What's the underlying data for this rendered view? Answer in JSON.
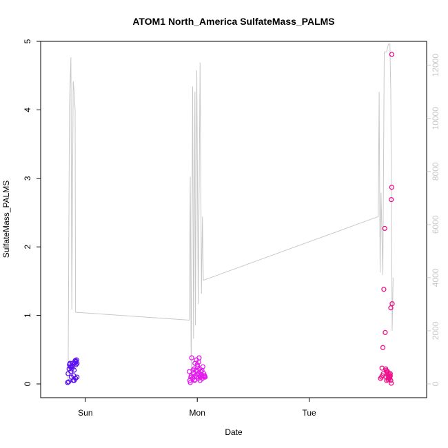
{
  "chart_data": {
    "type": "scatter",
    "title": "ATOM1 North_America SulfateMass_PALMS",
    "xlabel": "Date",
    "ylabel": "SulfateMass_PALMS",
    "x_tick_labels": [
      "Sun",
      "Mon",
      "Tue"
    ],
    "x_tick_values": [
      24,
      48,
      72
    ],
    "xlim": [
      15.6,
      96
    ],
    "ylim": [
      0,
      5
    ],
    "y_ticks": [
      0,
      1,
      2,
      3,
      4,
      5
    ],
    "y2lim": [
      0,
      12900
    ],
    "y2_ticks": [
      0,
      2000,
      4000,
      6000,
      8000,
      10000,
      12000
    ],
    "grid": false,
    "colors": {
      "flight1": "#5a10f0",
      "flight2": "#e41aef",
      "flight3": "#f0108a",
      "altitude": "#c8c8c8",
      "frame": "#000000"
    },
    "series": [
      {
        "values": [
          [
            20.2,
            0.02
          ],
          [
            20.4,
            0.03
          ],
          [
            20.3,
            0.15
          ],
          [
            20.5,
            0.22
          ],
          [
            20.6,
            0.28
          ],
          [
            20.7,
            0.3
          ],
          [
            20.8,
            0.25
          ],
          [
            20.9,
            0.18
          ],
          [
            21.0,
            0.1
          ],
          [
            21.1,
            0.22
          ],
          [
            21.2,
            0.3
          ],
          [
            21.3,
            0.26
          ],
          [
            21.4,
            0.05
          ],
          [
            21.5,
            0.12
          ],
          [
            21.6,
            0.2
          ],
          [
            21.7,
            0.3
          ],
          [
            21.8,
            0.34
          ],
          [
            21.9,
            0.32
          ],
          [
            22.0,
            0.28
          ],
          [
            22.1,
            0.35
          ],
          [
            22.2,
            0.3
          ],
          [
            21.9,
            0.08
          ],
          [
            22.2,
            0.1
          ],
          [
            21.6,
            0.05
          ],
          [
            21.0,
            0.25
          ],
          [
            22.0,
            0.33
          ]
        ]
      },
      {
        "values": [
          [
            46.3,
            0.18
          ],
          [
            46.4,
            0.05
          ],
          [
            46.5,
            0.02
          ],
          [
            46.6,
            0.1
          ],
          [
            46.7,
            0.12
          ],
          [
            46.8,
            0.38
          ],
          [
            47.0,
            0.08
          ],
          [
            47.2,
            0.15
          ],
          [
            47.3,
            0.22
          ],
          [
            47.4,
            0.05
          ],
          [
            47.5,
            0.3
          ],
          [
            47.6,
            0.12
          ],
          [
            47.7,
            0.2
          ],
          [
            47.8,
            0.35
          ],
          [
            47.9,
            0.1
          ],
          [
            48.0,
            0.18
          ],
          [
            48.1,
            0.25
          ],
          [
            48.2,
            0.08
          ],
          [
            48.3,
            0.15
          ],
          [
            48.4,
            0.38
          ],
          [
            48.5,
            0.22
          ],
          [
            48.6,
            0.1
          ],
          [
            48.7,
            0.12
          ],
          [
            48.8,
            0.18
          ],
          [
            48.9,
            0.14
          ],
          [
            49.0,
            0.2
          ],
          [
            49.1,
            0.08
          ],
          [
            49.2,
            0.25
          ],
          [
            49.3,
            0.12
          ],
          [
            49.4,
            0.15
          ],
          [
            49.5,
            0.1
          ],
          [
            49.6,
            0.12
          ],
          [
            49.7,
            0.1
          ],
          [
            47.1,
            0.2
          ],
          [
            47.5,
            0.06
          ],
          [
            48.0,
            0.28
          ],
          [
            48.6,
            0.05
          ],
          [
            49.0,
            0.12
          ],
          [
            48.3,
            0.32
          ],
          [
            47.9,
            0.14
          ]
        ]
      },
      {
        "values": [
          [
            87.3,
            0.08
          ],
          [
            87.5,
            0.1
          ],
          [
            87.6,
            0.23
          ],
          [
            87.7,
            0.12
          ],
          [
            87.8,
            0.53
          ],
          [
            88.0,
            1.38
          ],
          [
            88.2,
            2.27
          ],
          [
            88.3,
            0.75
          ],
          [
            88.4,
            0.22
          ],
          [
            88.5,
            0.1
          ],
          [
            88.6,
            0.05
          ],
          [
            88.7,
            0.15
          ],
          [
            88.8,
            0.18
          ],
          [
            88.9,
            0.12
          ],
          [
            89.0,
            0.08
          ],
          [
            89.1,
            0.15
          ],
          [
            89.2,
            0.12
          ],
          [
            89.3,
            0.1
          ],
          [
            89.4,
            0.15
          ],
          [
            89.5,
            0.05
          ],
          [
            89.5,
            1.11
          ],
          [
            89.6,
            2.69
          ],
          [
            89.7,
            2.87
          ],
          [
            89.8,
            1.17
          ],
          [
            89.7,
            4.81
          ],
          [
            89.6,
            0.01
          ],
          [
            88.5,
            0.2
          ],
          [
            88.9,
            0.06
          ],
          [
            89.2,
            0.08
          ],
          [
            89.4,
            0.12
          ],
          [
            87.9,
            0.15
          ],
          [
            88.6,
            0.18
          ]
        ]
      },
      {
        "axis": "right",
        "values": [
          [
            20.3,
            0
          ],
          [
            20.6,
            10500
          ],
          [
            20.9,
            12300
          ],
          [
            21.1,
            2800
          ],
          [
            21.4,
            11400
          ],
          [
            21.6,
            11000
          ],
          [
            21.8,
            10300
          ],
          [
            21.9,
            2700
          ],
          [
            46.3,
            2400
          ],
          [
            46.5,
            7800
          ],
          [
            46.7,
            200
          ],
          [
            47.0,
            11200
          ],
          [
            47.2,
            1700
          ],
          [
            47.5,
            11000
          ],
          [
            47.6,
            2200
          ],
          [
            47.9,
            11800
          ],
          [
            48.2,
            3000
          ],
          [
            48.6,
            12100
          ],
          [
            48.9,
            3400
          ],
          [
            49.1,
            6300
          ],
          [
            49.3,
            3900
          ],
          [
            86.8,
            6300
          ],
          [
            87.0,
            11000
          ],
          [
            87.2,
            4200
          ],
          [
            87.4,
            7200
          ],
          [
            87.8,
            4100
          ],
          [
            88.1,
            12500
          ],
          [
            88.6,
            12500
          ],
          [
            89.0,
            12800
          ],
          [
            89.3,
            12800
          ],
          [
            89.5,
            11000
          ],
          [
            89.8,
            2000
          ],
          [
            90.0,
            4000
          ]
        ]
      }
    ]
  }
}
